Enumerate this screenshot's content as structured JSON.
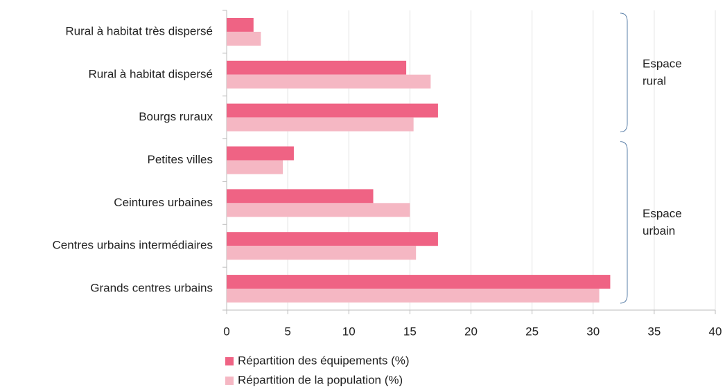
{
  "chart_data": {
    "type": "barh",
    "categories": [
      "Rural à habitat très dispersé",
      "Rural à habitat dispersé",
      "Bourgs ruraux",
      "Petites villes",
      "Ceintures urbaines",
      "Centres urbains intermédiaires",
      "Grands centres urbains"
    ],
    "series": [
      {
        "name": "Répartition des équipements (%)",
        "color": "#ef6384",
        "values": [
          2.2,
          14.7,
          17.3,
          5.5,
          12.0,
          17.3,
          31.4
        ]
      },
      {
        "name": "Répartition de la population (%)",
        "color": "#f5b7c3",
        "values": [
          2.8,
          16.7,
          15.3,
          4.6,
          15.0,
          15.5,
          30.5
        ]
      }
    ],
    "xlim": [
      0,
      40
    ],
    "xticks": [
      0,
      5,
      10,
      15,
      20,
      25,
      30,
      35,
      40
    ],
    "grid": true,
    "annotations": [
      {
        "lines": [
          "Espace",
          "rural"
        ],
        "from": 0,
        "to": 2
      },
      {
        "lines": [
          "Espace",
          "urbain"
        ],
        "from": 3,
        "to": 6
      }
    ]
  }
}
